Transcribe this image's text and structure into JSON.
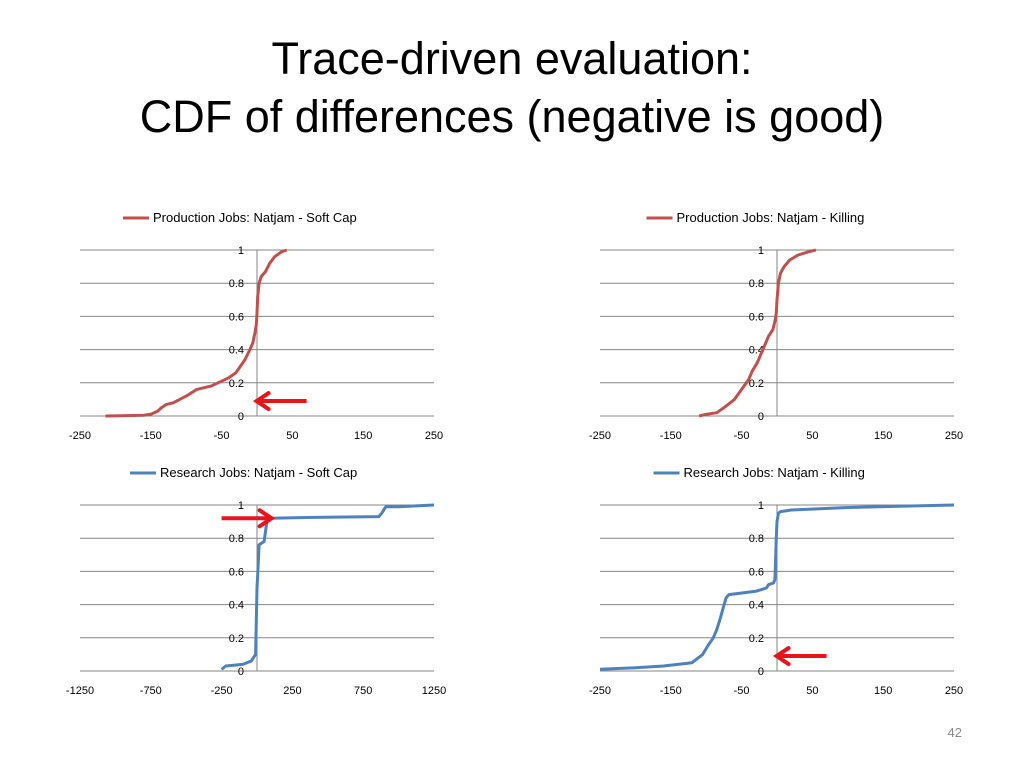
{
  "slide": {
    "title_line1": "Trace-driven evaluation:",
    "title_line2": "CDF of differences (negative is good)",
    "page_number": "42"
  },
  "colors": {
    "production": "#c0504d",
    "research": "#4f81bd",
    "arrow": "#e8141b",
    "grid": "#868686",
    "axis": "#868686"
  },
  "chart_data": [
    {
      "type": "line",
      "legend": "top",
      "series": [
        {
          "name": "Production Jobs: Natjam - Soft Cap",
          "color": "#c0504d",
          "points": [
            [
              -214,
              0
            ],
            [
              -190,
              0.002
            ],
            [
              -160,
              0.005
            ],
            [
              -150,
              0.01
            ],
            [
              -140,
              0.03
            ],
            [
              -135,
              0.05
            ],
            [
              -128,
              0.07
            ],
            [
              -118,
              0.08
            ],
            [
              -100,
              0.12
            ],
            [
              -85,
              0.16
            ],
            [
              -65,
              0.18
            ],
            [
              -55,
              0.2
            ],
            [
              -40,
              0.23
            ],
            [
              -30,
              0.26
            ],
            [
              -25,
              0.29
            ],
            [
              -17,
              0.34
            ],
            [
              -10,
              0.4
            ],
            [
              -6,
              0.44
            ],
            [
              -3,
              0.5
            ],
            [
              -1,
              0.55
            ],
            [
              0,
              0.62
            ],
            [
              1,
              0.72
            ],
            [
              3,
              0.8
            ],
            [
              6,
              0.84
            ],
            [
              12,
              0.87
            ],
            [
              18,
              0.92
            ],
            [
              25,
              0.96
            ],
            [
              35,
              0.99
            ],
            [
              42,
              1.0
            ]
          ]
        }
      ],
      "xlim": [
        -250,
        250
      ],
      "ylim": [
        0,
        1
      ],
      "xticks": [
        "-250",
        "-150",
        "-50",
        "50",
        "150",
        "250"
      ],
      "yticks": [
        "0",
        "0.2",
        "0.4",
        "0.6",
        "0.8",
        "1"
      ],
      "arrow": {
        "direction": "left",
        "x": 70,
        "y": 0.09
      }
    },
    {
      "type": "line",
      "legend": "top",
      "series": [
        {
          "name": "Production Jobs: Natjam - Killing",
          "color": "#c0504d",
          "points": [
            [
              -110,
              0
            ],
            [
              -100,
              0.01
            ],
            [
              -85,
              0.02
            ],
            [
              -75,
              0.05
            ],
            [
              -60,
              0.1
            ],
            [
              -50,
              0.16
            ],
            [
              -40,
              0.22
            ],
            [
              -35,
              0.27
            ],
            [
              -28,
              0.32
            ],
            [
              -22,
              0.38
            ],
            [
              -16,
              0.44
            ],
            [
              -12,
              0.48
            ],
            [
              -6,
              0.52
            ],
            [
              -3,
              0.57
            ],
            [
              -1,
              0.62
            ],
            [
              0,
              0.7
            ],
            [
              2,
              0.8
            ],
            [
              5,
              0.86
            ],
            [
              10,
              0.9
            ],
            [
              18,
              0.94
            ],
            [
              30,
              0.97
            ],
            [
              45,
              0.99
            ],
            [
              55,
              1.0
            ]
          ]
        }
      ],
      "xlim": [
        -250,
        250
      ],
      "ylim": [
        0,
        1
      ],
      "xticks": [
        "-250",
        "-150",
        "-50",
        "50",
        "150",
        "250"
      ],
      "yticks": [
        "0",
        "0.2",
        "0.4",
        "0.6",
        "0.8",
        "1"
      ]
    },
    {
      "type": "line",
      "legend": "top",
      "series": [
        {
          "name": "Research Jobs: Natjam - Soft Cap",
          "color": "#4f81bd",
          "points": [
            [
              -250,
              0.01
            ],
            [
              -220,
              0.03
            ],
            [
              -100,
              0.04
            ],
            [
              -40,
              0.06
            ],
            [
              -10,
              0.1
            ],
            [
              0,
              0.5
            ],
            [
              5,
              0.58
            ],
            [
              15,
              0.76
            ],
            [
              50,
              0.78
            ],
            [
              70,
              0.9
            ],
            [
              90,
              0.92
            ],
            [
              400,
              0.925
            ],
            [
              860,
              0.93
            ],
            [
              880,
              0.95
            ],
            [
              910,
              0.99
            ],
            [
              1000,
              0.99
            ],
            [
              1250,
              1.0
            ]
          ]
        }
      ],
      "xlim": [
        -1250,
        1250
      ],
      "ylim": [
        0,
        1
      ],
      "xticks": [
        "-1250",
        "-750",
        "-250",
        "250",
        "750",
        "1250"
      ],
      "yticks": [
        "0",
        "0.2",
        "0.4",
        "0.6",
        "0.8",
        "1"
      ],
      "arrow": {
        "direction": "right",
        "x": -250,
        "y": 0.92
      }
    },
    {
      "type": "line",
      "legend": "top",
      "series": [
        {
          "name": "Research Jobs: Natjam - Killing",
          "color": "#4f81bd",
          "points": [
            [
              -250,
              0.01
            ],
            [
              -200,
              0.02
            ],
            [
              -160,
              0.03
            ],
            [
              -120,
              0.05
            ],
            [
              -105,
              0.1
            ],
            [
              -98,
              0.15
            ],
            [
              -90,
              0.2
            ],
            [
              -85,
              0.25
            ],
            [
              -80,
              0.32
            ],
            [
              -76,
              0.38
            ],
            [
              -72,
              0.44
            ],
            [
              -68,
              0.46
            ],
            [
              -30,
              0.48
            ],
            [
              -15,
              0.5
            ],
            [
              -12,
              0.52
            ],
            [
              -5,
              0.53
            ],
            [
              -3,
              0.55
            ],
            [
              -1,
              0.8
            ],
            [
              0,
              0.9
            ],
            [
              2,
              0.95
            ],
            [
              5,
              0.96
            ],
            [
              20,
              0.97
            ],
            [
              100,
              0.985
            ],
            [
              250,
              1.0
            ]
          ]
        }
      ],
      "xlim": [
        -250,
        250
      ],
      "ylim": [
        0,
        1
      ],
      "xticks": [
        "-250",
        "-150",
        "-50",
        "50",
        "150",
        "250"
      ],
      "yticks": [
        "0",
        "0.2",
        "0.4",
        "0.6",
        "0.8",
        "1"
      ],
      "arrow": {
        "direction": "left",
        "x": 70,
        "y": 0.09
      }
    }
  ]
}
